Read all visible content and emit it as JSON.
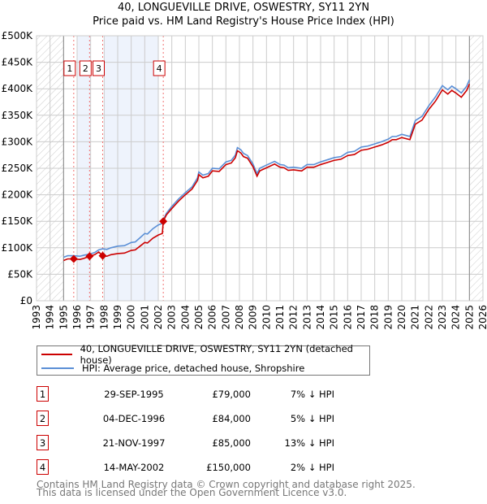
{
  "chart_data": {
    "type": "line",
    "title": "40, LONGUEVILLE DRIVE, OSWESTRY, SY11 2YN",
    "subtitle": "Price paid vs. HM Land Registry's House Price Index (HPI)",
    "xlim": [
      1993,
      2026
    ],
    "ylim": [
      0,
      500000
    ],
    "x_ticks": [
      "1993",
      "1994",
      "1995",
      "1996",
      "1997",
      "1998",
      "1999",
      "2000",
      "2001",
      "2002",
      "2003",
      "2004",
      "2005",
      "2006",
      "2007",
      "2008",
      "2009",
      "2010",
      "2011",
      "2012",
      "2013",
      "2014",
      "2015",
      "2016",
      "2017",
      "2018",
      "2019",
      "2020",
      "2021",
      "2022",
      "2023",
      "2024",
      "2025",
      "2026"
    ],
    "y_ticks": [
      {
        "v": 0,
        "label": "£0"
      },
      {
        "v": 50000,
        "label": "£50K"
      },
      {
        "v": 100000,
        "label": "£100K"
      },
      {
        "v": 150000,
        "label": "£150K"
      },
      {
        "v": 200000,
        "label": "£200K"
      },
      {
        "v": 250000,
        "label": "£250K"
      },
      {
        "v": 300000,
        "label": "£300K"
      },
      {
        "v": 350000,
        "label": "£350K"
      },
      {
        "v": 400000,
        "label": "£400K"
      },
      {
        "v": 450000,
        "label": "£450K"
      },
      {
        "v": 500000,
        "label": "£500K"
      }
    ],
    "grid": true,
    "hatched_ranges": [
      [
        1993,
        1995
      ],
      [
        2025,
        2026
      ]
    ],
    "shaded_ranges": [
      [
        1996,
        1997
      ],
      [
        1998,
        2002
      ]
    ],
    "series": [
      {
        "name": "40, LONGUEVILLE DRIVE, OSWESTRY, SY11 2YN (detached house)",
        "color": "#cc0000",
        "points": [
          [
            1995.0,
            76
          ],
          [
            1995.3,
            79
          ],
          [
            1995.75,
            79
          ],
          [
            1996.2,
            78
          ],
          [
            1996.5,
            80
          ],
          [
            1996.92,
            84
          ],
          [
            1997.3,
            87
          ],
          [
            1997.6,
            92
          ],
          [
            1997.89,
            85
          ],
          [
            1998.2,
            84
          ],
          [
            1998.5,
            87
          ],
          [
            1999.0,
            89
          ],
          [
            1999.5,
            90
          ],
          [
            2000.0,
            95
          ],
          [
            2000.3,
            96
          ],
          [
            2000.7,
            104
          ],
          [
            2001.0,
            110
          ],
          [
            2001.2,
            109
          ],
          [
            2001.6,
            118
          ],
          [
            2002.0,
            124
          ],
          [
            2002.3,
            127
          ],
          [
            2002.37,
            150
          ],
          [
            2002.6,
            162
          ],
          [
            2003.0,
            174
          ],
          [
            2003.5,
            188
          ],
          [
            2004.0,
            200
          ],
          [
            2004.5,
            211
          ],
          [
            2004.9,
            227
          ],
          [
            2005.0,
            238
          ],
          [
            2005.3,
            232
          ],
          [
            2005.7,
            235
          ],
          [
            2006.0,
            245
          ],
          [
            2006.5,
            244
          ],
          [
            2007.0,
            257
          ],
          [
            2007.4,
            260
          ],
          [
            2007.7,
            270
          ],
          [
            2007.85,
            283
          ],
          [
            2008.1,
            279
          ],
          [
            2008.3,
            272
          ],
          [
            2008.6,
            269
          ],
          [
            2009.0,
            253
          ],
          [
            2009.3,
            235
          ],
          [
            2009.5,
            245
          ],
          [
            2010.0,
            251
          ],
          [
            2010.6,
            258
          ],
          [
            2011.0,
            252
          ],
          [
            2011.3,
            251
          ],
          [
            2011.6,
            246
          ],
          [
            2012.0,
            247
          ],
          [
            2012.6,
            245
          ],
          [
            2013.0,
            252
          ],
          [
            2013.5,
            252
          ],
          [
            2014.0,
            257
          ],
          [
            2014.5,
            261
          ],
          [
            2015.0,
            265
          ],
          [
            2015.5,
            267
          ],
          [
            2016.0,
            274
          ],
          [
            2016.5,
            276
          ],
          [
            2017.0,
            284
          ],
          [
            2017.5,
            286
          ],
          [
            2018.0,
            290
          ],
          [
            2018.5,
            294
          ],
          [
            2019.0,
            299
          ],
          [
            2019.3,
            304
          ],
          [
            2019.6,
            304
          ],
          [
            2020.0,
            308
          ],
          [
            2020.3,
            306
          ],
          [
            2020.6,
            304
          ],
          [
            2021.0,
            333
          ],
          [
            2021.5,
            341
          ],
          [
            2022.0,
            361
          ],
          [
            2022.5,
            377
          ],
          [
            2023.0,
            398
          ],
          [
            2023.4,
            390
          ],
          [
            2023.7,
            397
          ],
          [
            2024.0,
            392
          ],
          [
            2024.4,
            384
          ],
          [
            2024.8,
            397
          ],
          [
            2025.0,
            409
          ]
        ]
      },
      {
        "name": "HPI: Average price, detached house, Shropshire",
        "color": "#5b8fd6",
        "points": [
          [
            1995.0,
            82
          ],
          [
            1995.3,
            85
          ],
          [
            1995.75,
            85
          ],
          [
            1996.2,
            84
          ],
          [
            1996.5,
            86
          ],
          [
            1996.92,
            88
          ],
          [
            1997.3,
            91
          ],
          [
            1997.6,
            96
          ],
          [
            1997.89,
            98
          ],
          [
            1998.2,
            97
          ],
          [
            1998.5,
            100
          ],
          [
            1999.0,
            103
          ],
          [
            1999.5,
            104
          ],
          [
            2000.0,
            110
          ],
          [
            2000.3,
            111
          ],
          [
            2000.7,
            120
          ],
          [
            2001.0,
            127
          ],
          [
            2001.2,
            126
          ],
          [
            2001.6,
            136
          ],
          [
            2002.0,
            143
          ],
          [
            2002.3,
            146
          ],
          [
            2002.37,
            153
          ],
          [
            2002.6,
            165
          ],
          [
            2003.0,
            178
          ],
          [
            2003.5,
            192
          ],
          [
            2004.0,
            204
          ],
          [
            2004.5,
            215
          ],
          [
            2004.9,
            232
          ],
          [
            2005.0,
            243
          ],
          [
            2005.3,
            237
          ],
          [
            2005.7,
            240
          ],
          [
            2006.0,
            250
          ],
          [
            2006.5,
            249
          ],
          [
            2007.0,
            262
          ],
          [
            2007.4,
            265
          ],
          [
            2007.7,
            275
          ],
          [
            2007.85,
            289
          ],
          [
            2008.1,
            285
          ],
          [
            2008.3,
            278
          ],
          [
            2008.6,
            274
          ],
          [
            2009.0,
            258
          ],
          [
            2009.3,
            240
          ],
          [
            2009.5,
            250
          ],
          [
            2010.0,
            256
          ],
          [
            2010.6,
            263
          ],
          [
            2011.0,
            257
          ],
          [
            2011.3,
            256
          ],
          [
            2011.6,
            251
          ],
          [
            2012.0,
            252
          ],
          [
            2012.6,
            250
          ],
          [
            2013.0,
            257
          ],
          [
            2013.5,
            257
          ],
          [
            2014.0,
            262
          ],
          [
            2014.5,
            266
          ],
          [
            2015.0,
            270
          ],
          [
            2015.5,
            272
          ],
          [
            2016.0,
            280
          ],
          [
            2016.5,
            282
          ],
          [
            2017.0,
            290
          ],
          [
            2017.5,
            292
          ],
          [
            2018.0,
            296
          ],
          [
            2018.5,
            300
          ],
          [
            2019.0,
            305
          ],
          [
            2019.3,
            310
          ],
          [
            2019.6,
            310
          ],
          [
            2020.0,
            314
          ],
          [
            2020.3,
            312
          ],
          [
            2020.6,
            310
          ],
          [
            2021.0,
            340
          ],
          [
            2021.5,
            348
          ],
          [
            2022.0,
            368
          ],
          [
            2022.5,
            385
          ],
          [
            2023.0,
            406
          ],
          [
            2023.4,
            398
          ],
          [
            2023.7,
            405
          ],
          [
            2024.0,
            400
          ],
          [
            2024.4,
            392
          ],
          [
            2024.8,
            405
          ],
          [
            2025.0,
            417
          ]
        ]
      }
    ],
    "value_unit": "thousands GBP",
    "sales": [
      {
        "id": "1",
        "year": 1995.75,
        "value": 79000
      },
      {
        "id": "2",
        "year": 1996.92,
        "value": 84000
      },
      {
        "id": "3",
        "year": 1997.89,
        "value": 85000
      },
      {
        "id": "4",
        "year": 2002.37,
        "value": 150000
      }
    ]
  },
  "legend": {
    "price_paid": "40, LONGUEVILLE DRIVE, OSWESTRY, SY11 2YN (detached house)",
    "hpi": "HPI: Average price, detached house, Shropshire"
  },
  "transactions": [
    {
      "id": "1",
      "date": "29-SEP-1995",
      "price": "£79,000",
      "hpi": "7% ↓ HPI"
    },
    {
      "id": "2",
      "date": "04-DEC-1996",
      "price": "£84,000",
      "hpi": "5% ↓ HPI"
    },
    {
      "id": "3",
      "date": "21-NOV-1997",
      "price": "£85,000",
      "hpi": "13% ↓ HPI"
    },
    {
      "id": "4",
      "date": "14-MAY-2002",
      "price": "£150,000",
      "hpi": "2% ↓ HPI"
    }
  ],
  "footer": {
    "line1": "Contains HM Land Registry data © Crown copyright and database right 2025.",
    "line2": "This data is licensed under the Open Government Licence v3.0."
  }
}
